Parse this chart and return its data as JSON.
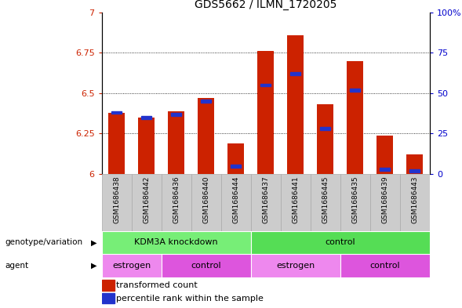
{
  "title": "GDS5662 / ILMN_1720205",
  "samples": [
    "GSM1686438",
    "GSM1686442",
    "GSM1686436",
    "GSM1686440",
    "GSM1686444",
    "GSM1686437",
    "GSM1686441",
    "GSM1686445",
    "GSM1686435",
    "GSM1686439",
    "GSM1686443"
  ],
  "transformed_count": [
    6.38,
    6.35,
    6.39,
    6.47,
    6.19,
    6.76,
    6.86,
    6.43,
    6.7,
    6.24,
    6.12
  ],
  "percentile_rank": [
    38,
    35,
    37,
    45,
    5,
    55,
    62,
    28,
    52,
    3,
    2
  ],
  "ylim_left": [
    6.0,
    7.0
  ],
  "ylim_right": [
    0,
    100
  ],
  "yticks_left": [
    6.0,
    6.25,
    6.5,
    6.75,
    7.0
  ],
  "ytick_labels_left": [
    "6",
    "6.25",
    "6.5",
    "6.75",
    "7"
  ],
  "yticks_right": [
    0,
    25,
    50,
    75,
    100
  ],
  "ytick_labels_right": [
    "0",
    "25",
    "50",
    "75",
    "100%"
  ],
  "bar_color": "#cc2200",
  "percentile_color": "#2233cc",
  "bar_width": 0.55,
  "genotype_groups": [
    {
      "label": "KDM3A knockdown",
      "start": 0,
      "end": 5,
      "color": "#77ee77"
    },
    {
      "label": "control",
      "start": 5,
      "end": 11,
      "color": "#55dd55"
    }
  ],
  "agent_groups": [
    {
      "label": "estrogen",
      "start": 0,
      "end": 2,
      "color": "#ee88ee"
    },
    {
      "label": "control",
      "start": 2,
      "end": 5,
      "color": "#dd55dd"
    },
    {
      "label": "estrogen",
      "start": 5,
      "end": 8,
      "color": "#ee88ee"
    },
    {
      "label": "control",
      "start": 8,
      "end": 11,
      "color": "#dd55dd"
    }
  ],
  "genotype_label": "genotype/variation",
  "agent_label": "agent",
  "legend_transformed": "transformed count",
  "legend_percentile": "percentile rank within the sample",
  "bg_color": "#ffffff",
  "tick_label_color_left": "#cc2200",
  "tick_label_color_right": "#0000cc",
  "grid_yticks": [
    6.25,
    6.5,
    6.75
  ],
  "sample_bg_color": "#cccccc",
  "sample_edge_color": "#aaaaaa"
}
